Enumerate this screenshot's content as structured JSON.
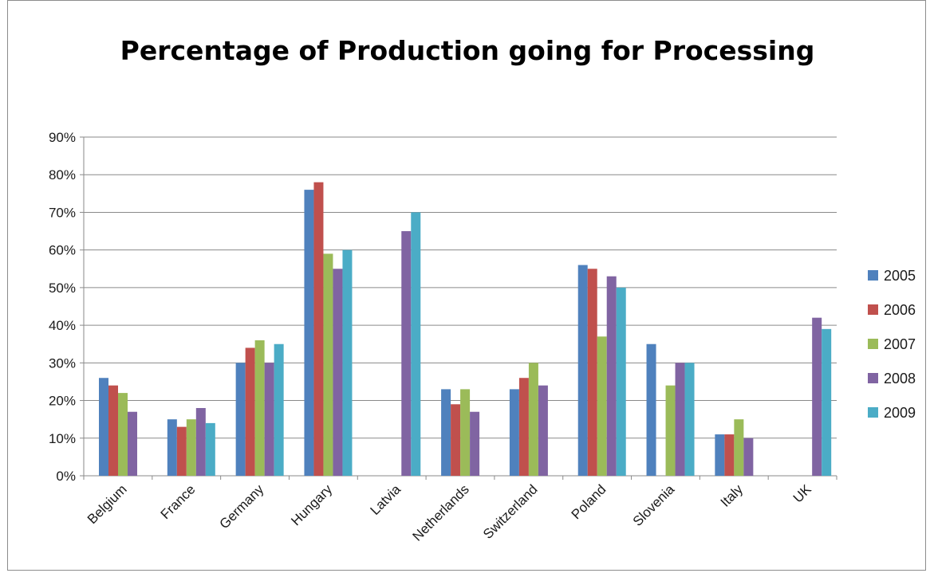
{
  "chart_data": {
    "type": "bar",
    "title": "Percentage of Production going for Processing",
    "categories": [
      "Belgium",
      "France",
      "Germany",
      "Hungary",
      "Latvia",
      "Netherlands",
      "Switzerland",
      "Poland",
      "Slovenia",
      "Italy",
      "UK"
    ],
    "series": [
      {
        "name": "2005",
        "color": "#4f81bd",
        "values": [
          26,
          15,
          30,
          76,
          null,
          23,
          23,
          56,
          35,
          11,
          null
        ]
      },
      {
        "name": "2006",
        "color": "#c0504d",
        "values": [
          24,
          13,
          34,
          78,
          null,
          19,
          26,
          55,
          null,
          11,
          null
        ]
      },
      {
        "name": "2007",
        "color": "#9bbb59",
        "values": [
          22,
          15,
          36,
          59,
          null,
          23,
          30,
          37,
          24,
          15,
          null
        ]
      },
      {
        "name": "2008",
        "color": "#8064a2",
        "values": [
          17,
          18,
          30,
          55,
          65,
          17,
          24,
          53,
          30,
          10,
          42
        ]
      },
      {
        "name": "2009",
        "color": "#4bacc6",
        "values": [
          null,
          14,
          35,
          60,
          70,
          null,
          null,
          50,
          30,
          null,
          39
        ]
      }
    ],
    "yticks": [
      "0%",
      "10%",
      "20%",
      "30%",
      "40%",
      "50%",
      "60%",
      "70%",
      "80%",
      "90%"
    ],
    "ylim": [
      0,
      90
    ],
    "grid": true,
    "legend": "right"
  }
}
